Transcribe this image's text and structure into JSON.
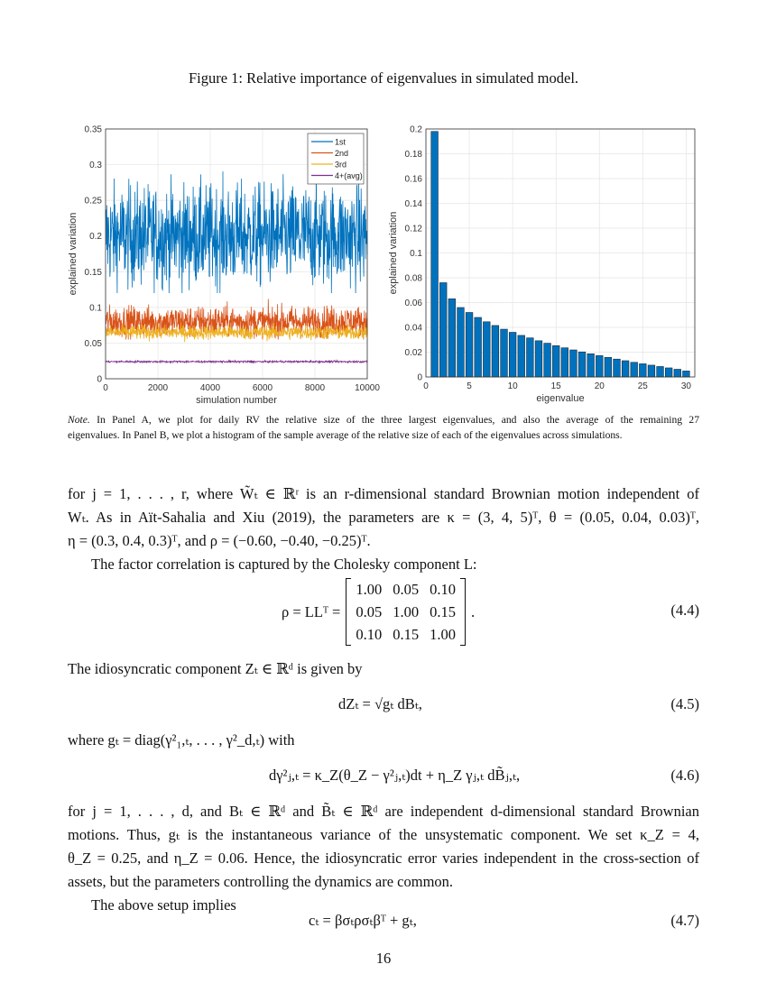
{
  "figure_title": "Figure 1: Relative importance of eigenvalues in simulated model.",
  "chart_data": [
    {
      "type": "line",
      "xlabel": "simulation number",
      "ylabel": "explained variation",
      "xlim": [
        0,
        10000
      ],
      "ylim": [
        0,
        0.35
      ],
      "xticks": [
        "0",
        "2000",
        "4000",
        "6000",
        "8000",
        "10000"
      ],
      "yticks": [
        "0",
        "0.05",
        "0.1",
        "0.15",
        "0.2",
        "0.25",
        "0.3",
        "0.35"
      ],
      "grid": true,
      "legend_position": "top-right",
      "series": [
        {
          "name": "1st",
          "color": "#0072BD",
          "mean": 0.2,
          "min": 0.12,
          "max": 0.33
        },
        {
          "name": "2nd",
          "color": "#D95319",
          "mean": 0.08,
          "min": 0.055,
          "max": 0.12
        },
        {
          "name": "3rd",
          "color": "#EDB120",
          "mean": 0.065,
          "min": 0.05,
          "max": 0.08
        },
        {
          "name": "4+(avg)",
          "color": "#7E2F8E",
          "mean": 0.024,
          "min": 0.022,
          "max": 0.026
        }
      ]
    },
    {
      "type": "bar",
      "xlabel": "eigenvalue",
      "ylabel": "explained variation",
      "xlim": [
        0,
        31
      ],
      "ylim": [
        0,
        0.2
      ],
      "xticks": [
        "0",
        "5",
        "10",
        "15",
        "20",
        "25",
        "30"
      ],
      "yticks": [
        "0",
        "0.02",
        "0.04",
        "0.06",
        "0.08",
        "0.1",
        "0.12",
        "0.14",
        "0.16",
        "0.18",
        "0.2"
      ],
      "grid": true,
      "color": "#0072BD",
      "categories": [
        1,
        2,
        3,
        4,
        5,
        6,
        7,
        8,
        9,
        10,
        11,
        12,
        13,
        14,
        15,
        16,
        17,
        18,
        19,
        20,
        21,
        22,
        23,
        24,
        25,
        26,
        27,
        28,
        29,
        30
      ],
      "values": [
        0.198,
        0.076,
        0.063,
        0.056,
        0.052,
        0.048,
        0.0445,
        0.0415,
        0.0385,
        0.036,
        0.0335,
        0.0315,
        0.0292,
        0.0272,
        0.0252,
        0.0235,
        0.0218,
        0.0202,
        0.0187,
        0.0172,
        0.0158,
        0.0144,
        0.0131,
        0.0118,
        0.0106,
        0.0095,
        0.0084,
        0.0073,
        0.0062,
        0.0048
      ]
    }
  ],
  "note": {
    "label": "Note.",
    "line1": "In Panel A, we plot for daily RV the relative size of the three largest eigenvalues, and also the average of the remaining 27",
    "line2": "eigenvalues. In Panel B, we plot a histogram of the sample average of the relative size of each of the eigenvalues across simulations."
  },
  "body": {
    "p1": [
      "for j = 1, . . . , r, where W̃ₜ ∈ ℝʳ is an r-dimensional standard Brownian motion independent of",
      "Wₜ.  As in Aït-Sahalia and Xiu (2019), the parameters are κ = (3, 4, 5)ᵀ, θ = (0.05, 0.04, 0.03)ᵀ,",
      "η = (0.3, 0.4, 0.3)ᵀ, and ρ = (−0.60, −0.40, −0.25)ᵀ."
    ],
    "p2": "The factor correlation is captured by the Cholesky component L:",
    "eq44_lhs": "ρ = LLᵀ =",
    "eq44_matrix": [
      [
        "1.00",
        "0.05",
        "0.10"
      ],
      [
        "0.05",
        "1.00",
        "0.15"
      ],
      [
        "0.10",
        "0.15",
        "1.00"
      ]
    ],
    "eq44_tail": ".",
    "eq44_num": "(4.4)",
    "p3": "The idiosyncratic component Zₜ ∈ ℝᵈ is given by",
    "eq45": "dZₜ = √gₜ dBₜ,",
    "eq45_num": "(4.5)",
    "p4": "where gₜ = diag(γ²₁,ₜ, . . . , γ²_d,ₜ) with",
    "eq46": "dγ²ⱼ,ₜ = κ_Z(θ_Z − γ²ⱼ,ₜ)dt + η_Z γⱼ,ₜ dB̃ⱼ,ₜ,",
    "eq46_num": "(4.6)",
    "p5": [
      "for j = 1, . . . , d, and Bₜ ∈ ℝᵈ and B̃ₜ ∈ ℝᵈ are independent d-dimensional standard Brownian",
      "motions. Thus, gₜ is the instantaneous variance of the unsystematic component. We set κ_Z = 4,",
      "θ_Z = 0.25, and η_Z = 0.06. Hence, the idiosyncratic error varies independent in the cross-section of",
      "assets, but the parameters controlling the dynamics are common."
    ],
    "p6": "The above setup implies",
    "eq47": "cₜ = βσₜρσₜβᵀ + gₜ,",
    "eq47_num": "(4.7)"
  },
  "page_number": "16"
}
